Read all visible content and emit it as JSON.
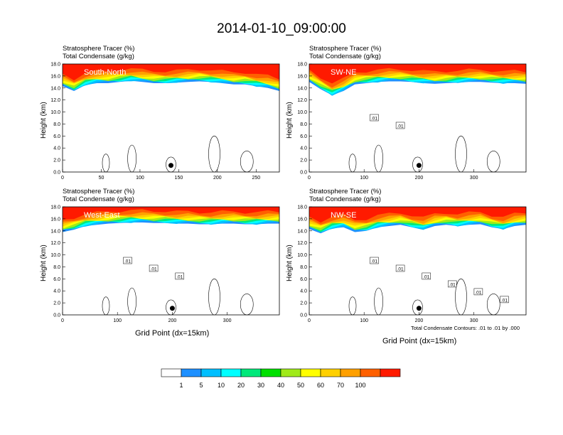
{
  "title": "2014-01-10_09:00:00",
  "chart_data": [
    {
      "type": "heatmap",
      "panel": "South-North",
      "title_lines": [
        "Stratosphere Tracer   (%)",
        "Total Condensate   (g/kg)"
      ],
      "ylabel": "Height (km)",
      "xlabel": "",
      "xlim": [
        0,
        280
      ],
      "ylim": [
        0,
        18
      ],
      "xticks": [
        "0",
        "50",
        "100",
        "150",
        "200",
        "250"
      ],
      "xtick_values": [
        0,
        50,
        100,
        150,
        200,
        250
      ],
      "yticks": [
        "0.0",
        "2.0",
        "4.0",
        "6.0",
        "8.0",
        "10.0",
        "12.0",
        "14.0",
        "16.0",
        "18.0"
      ],
      "marker": {
        "x": 140,
        "y": 1.1
      },
      "tracer_base": [
        14.3,
        13.5,
        14.5,
        14.8,
        14.8,
        15.0,
        15.2,
        15.0,
        14.8,
        14.8,
        14.9,
        15.0,
        15.1,
        15.0,
        14.8,
        14.6,
        14.6,
        14.3,
        14.0,
        13.5
      ],
      "contour_labels": [],
      "note": ""
    },
    {
      "type": "heatmap",
      "panel": "SW-NE",
      "title_lines": [
        "Stratosphere Tracer   (%)",
        "Total Condensate   (g/kg)"
      ],
      "ylabel": "Height (km)",
      "xlabel": "",
      "xlim": [
        0,
        395
      ],
      "ylim": [
        0,
        18
      ],
      "xticks": [
        "0",
        "100",
        "200",
        "300"
      ],
      "xtick_values": [
        0,
        100,
        200,
        300
      ],
      "yticks": [
        "0.0",
        "2.0",
        "4.0",
        "6.0",
        "8.0",
        "10.0",
        "12.0",
        "14.0",
        "16.0",
        "18.0"
      ],
      "marker": {
        "x": 200,
        "y": 1.1
      },
      "tracer_base": [
        15.0,
        13.8,
        12.8,
        13.5,
        14.6,
        14.8,
        15.0,
        15.1,
        15.1,
        15.0,
        14.8,
        14.7,
        14.8,
        14.9,
        15.0,
        15.0,
        14.9,
        14.8,
        14.8,
        14.7
      ],
      "contour_labels": [
        ".01",
        ".01"
      ],
      "note": ""
    },
    {
      "type": "heatmap",
      "panel": "West-East",
      "title_lines": [
        "Stratosphere Tracer   (%)",
        "Total Condensate   (g/kg)"
      ],
      "ylabel": "Height (km)",
      "xlabel": "Grid Point (dx=15km)",
      "xlim": [
        0,
        395
      ],
      "ylim": [
        0,
        18
      ],
      "xticks": [
        "0",
        "100",
        "200",
        "300"
      ],
      "xtick_values": [
        0,
        100,
        200,
        300
      ],
      "yticks": [
        "0.0",
        "2.0",
        "4.0",
        "6.0",
        "8.0",
        "10.0",
        "12.0",
        "14.0",
        "16.0",
        "18.0"
      ],
      "marker": {
        "x": 200,
        "y": 1.1
      },
      "tracer_base": [
        13.8,
        14.2,
        14.8,
        15.0,
        15.2,
        15.3,
        15.4,
        15.4,
        15.3,
        15.3,
        15.2,
        15.2,
        15.1,
        15.1,
        15.2,
        15.2,
        15.1,
        15.1,
        15.2,
        15.2
      ],
      "contour_labels": [
        ".01",
        ".01",
        ".01"
      ],
      "note": ""
    },
    {
      "type": "heatmap",
      "panel": "NW-SE",
      "title_lines": [
        "Stratosphere Tracer   (%)",
        "Total Condensate   (g/kg)"
      ],
      "ylabel": "Height (km)",
      "xlabel": "Grid Point (dx=15km)",
      "xlim": [
        0,
        395
      ],
      "ylim": [
        0,
        18
      ],
      "xticks": [
        "0",
        "100",
        "200",
        "300"
      ],
      "xtick_values": [
        0,
        100,
        200,
        300
      ],
      "yticks": [
        "0.0",
        "2.0",
        "4.0",
        "6.0",
        "8.0",
        "10.0",
        "12.0",
        "14.0",
        "16.0",
        "18.0"
      ],
      "marker": {
        "x": 200,
        "y": 1.1
      },
      "tracer_base": [
        14.3,
        13.6,
        14.4,
        14.6,
        13.8,
        14.0,
        14.6,
        14.8,
        15.0,
        14.6,
        14.2,
        14.8,
        15.0,
        14.8,
        15.0,
        15.1,
        14.6,
        14.3,
        14.8,
        15.0
      ],
      "contour_labels": [
        ".01",
        ".01",
        ".01",
        ".01",
        ".01",
        ".01"
      ],
      "note": "Total Condensate Contours: .01 to .01 by .000"
    }
  ],
  "colorbar": {
    "labels": [
      "1",
      "5",
      "10",
      "20",
      "30",
      "40",
      "50",
      "60",
      "70",
      "100"
    ],
    "colors": [
      "#ffffff",
      "#1e90ff",
      "#00bfff",
      "#00ffff",
      "#00e87a",
      "#00e000",
      "#a0ea1a",
      "#ffff00",
      "#ffd000",
      "#ffa000",
      "#ff6000",
      "#ff1a00"
    ]
  }
}
